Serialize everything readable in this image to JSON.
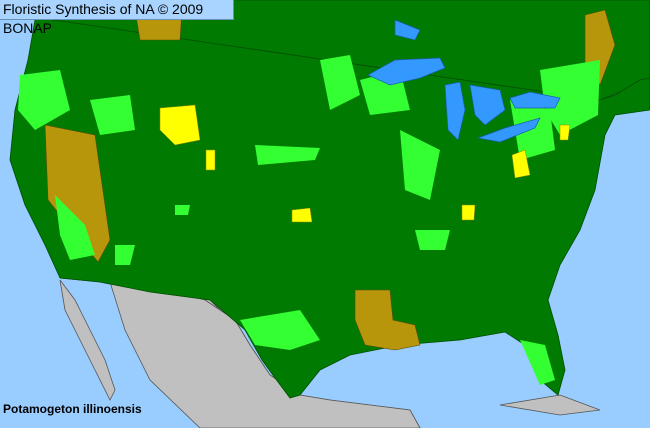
{
  "header": {
    "title": "Floristic Synthesis of NA © 2009 BONAP"
  },
  "map": {
    "species": "Potamogeton illinoensis",
    "colors": {
      "ocean": "#99ccff",
      "present_state": "#007a00",
      "present_county": "#33ff33",
      "absent_state": "#b8960c",
      "rare_county": "#ffff00",
      "outside_region": "#c0c0c0",
      "lake": "#3399ff"
    }
  }
}
